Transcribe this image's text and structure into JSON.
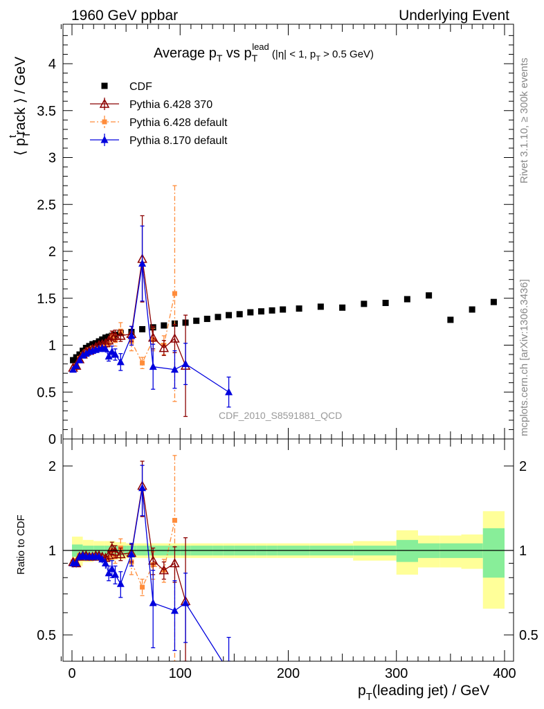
{
  "header": {
    "left": "1960 GeV ppbar",
    "right": "Underlying Event"
  },
  "side_labels": {
    "rivet": "Rivet 3.1.10, ≥ 300k events",
    "mcplots": "mcplots.cern.ch [arXiv:1306.3436]"
  },
  "chart_data": [
    {
      "type": "scatter",
      "title": "Average p_T vs p_T^lead (|η| < 1, p_T > 0.5 GeV)",
      "xlabel": "p_T(leading jet) / GeV",
      "ylabel": "⟨ p_T^track ⟩ / GeV",
      "watermark": "CDF_2010_S8591881_QCD",
      "xlim": [
        -10,
        405
      ],
      "ylim": [
        0,
        4.4
      ],
      "x_ticks": [
        0,
        100,
        200,
        300,
        400
      ],
      "y_ticks": [
        0,
        0.5,
        1,
        1.5,
        2,
        2.5,
        3,
        3.5,
        4
      ],
      "y_tick_labels": [
        "0",
        "0.5",
        "1",
        "1.5",
        "2",
        "2.5",
        "3",
        "3.5",
        "4"
      ],
      "grid": false,
      "legend_position": "top-left",
      "series": [
        {
          "name": "CDF",
          "color": "#000000",
          "marker": "filled-square",
          "x": [
            1,
            4,
            7,
            10,
            13,
            16,
            19,
            22,
            25,
            28,
            31,
            34,
            37,
            40,
            45,
            55,
            65,
            75,
            85,
            95,
            105,
            115,
            125,
            135,
            145,
            155,
            165,
            175,
            185,
            195,
            210,
            230,
            250,
            270,
            290,
            310,
            330,
            350,
            370,
            390
          ],
          "y": [
            0.84,
            0.87,
            0.9,
            0.94,
            0.97,
            0.99,
            1.01,
            1.02,
            1.04,
            1.06,
            1.08,
            1.09,
            1.1,
            1.11,
            1.13,
            1.14,
            1.17,
            1.19,
            1.21,
            1.23,
            1.24,
            1.26,
            1.28,
            1.3,
            1.32,
            1.33,
            1.35,
            1.36,
            1.37,
            1.38,
            1.39,
            1.41,
            1.4,
            1.44,
            1.45,
            1.49,
            1.53,
            1.27,
            1.38,
            1.46
          ],
          "err": [
            0.02,
            0.02,
            0.02,
            0.02,
            0.02,
            0.02,
            0.02,
            0.02,
            0.02,
            0.02,
            0.02,
            0.02,
            0.02,
            0.02,
            0.02,
            0.02,
            0.02,
            0.02,
            0.02,
            0.02,
            0.02,
            0.02,
            0.02,
            0.02,
            0.02,
            0.02,
            0.02,
            0.02,
            0.02,
            0.02,
            0.02,
            0.02,
            0.02,
            0.02,
            0.02,
            0.02,
            0.02,
            0.02,
            0.02,
            0.02
          ]
        },
        {
          "name": "Pythia 6.428 370",
          "color": "#8b0000",
          "marker": "open-triangle",
          "line": "solid",
          "x": [
            1,
            4,
            7,
            10,
            13,
            16,
            19,
            22,
            25,
            28,
            31,
            34,
            37,
            40,
            45,
            55,
            65,
            75,
            85,
            95,
            105
          ],
          "y": [
            0.76,
            0.78,
            0.85,
            0.9,
            0.93,
            0.94,
            0.96,
            0.98,
            1.0,
            1.01,
            1.02,
            1.05,
            1.1,
            1.1,
            1.1,
            1.12,
            1.92,
            1.08,
            0.97,
            1.07,
            0.78
          ],
          "err": [
            0.03,
            0.03,
            0.03,
            0.03,
            0.03,
            0.03,
            0.03,
            0.03,
            0.03,
            0.03,
            0.04,
            0.04,
            0.05,
            0.06,
            0.06,
            0.08,
            0.46,
            0.12,
            0.08,
            0.15,
            0.54
          ]
        },
        {
          "name": "Pythia 6.428 default",
          "color": "#ff8c3a",
          "marker": "filled-square-small",
          "line": "dashdot",
          "x": [
            1,
            4,
            7,
            10,
            13,
            16,
            19,
            22,
            25,
            28,
            31,
            34,
            37,
            40,
            45,
            55,
            65,
            75,
            85,
            95
          ],
          "y": [
            0.74,
            0.78,
            0.86,
            0.9,
            0.93,
            0.95,
            0.97,
            0.97,
            0.97,
            0.99,
            1.0,
            1.02,
            1.1,
            1.05,
            1.15,
            1.04,
            0.81,
            1.06,
            1.0,
            1.55
          ],
          "err": [
            0.03,
            0.03,
            0.03,
            0.03,
            0.03,
            0.03,
            0.03,
            0.03,
            0.03,
            0.03,
            0.04,
            0.04,
            0.05,
            0.06,
            0.09,
            0.1,
            0.06,
            0.12,
            0.1,
            1.15
          ]
        },
        {
          "name": "Pythia 8.170 default",
          "color": "#0000dd",
          "marker": "filled-triangle",
          "line": "solid",
          "x": [
            1,
            4,
            7,
            10,
            13,
            16,
            19,
            22,
            25,
            28,
            31,
            34,
            37,
            40,
            45,
            55,
            65,
            75,
            95,
            105,
            145
          ],
          "y": [
            0.74,
            0.78,
            0.84,
            0.89,
            0.91,
            0.93,
            0.94,
            0.95,
            0.96,
            0.97,
            0.96,
            0.88,
            0.93,
            0.9,
            0.82,
            1.1,
            1.87,
            0.77,
            0.74,
            0.8,
            0.5
          ],
          "err": [
            0.03,
            0.03,
            0.03,
            0.03,
            0.03,
            0.03,
            0.03,
            0.03,
            0.03,
            0.03,
            0.04,
            0.05,
            0.06,
            0.06,
            0.09,
            0.1,
            0.4,
            0.24,
            0.2,
            0.22,
            0.16
          ]
        }
      ]
    },
    {
      "type": "scatter",
      "title": "",
      "xlabel": "p_T(leading jet) / GeV",
      "ylabel": "Ratio to CDF",
      "xlim": [
        -10,
        405
      ],
      "ylim": [
        0.4,
        2.3
      ],
      "y_log": true,
      "x_ticks": [
        0,
        100,
        200,
        300,
        400
      ],
      "y_ticks": [
        0.5,
        1,
        2
      ],
      "y_tick_labels": [
        "0.5",
        "1",
        "2"
      ],
      "reference_line": 1,
      "bands": {
        "x_edges": [
          0,
          10,
          20,
          30,
          40,
          50,
          60,
          70,
          80,
          90,
          100,
          110,
          120,
          130,
          140,
          150,
          160,
          170,
          180,
          190,
          200,
          220,
          240,
          260,
          280,
          300,
          320,
          340,
          360,
          380,
          400
        ],
        "inner_color": "#88ee99",
        "outer_color": "#ffff99",
        "inner": [
          0.05,
          0.04,
          0.04,
          0.04,
          0.04,
          0.04,
          0.04,
          0.04,
          0.04,
          0.04,
          0.04,
          0.04,
          0.04,
          0.04,
          0.04,
          0.04,
          0.04,
          0.04,
          0.04,
          0.04,
          0.04,
          0.04,
          0.04,
          0.04,
          0.04,
          0.09,
          0.06,
          0.06,
          0.06,
          0.2
        ],
        "outer": [
          0.12,
          0.09,
          0.08,
          0.08,
          0.07,
          0.06,
          0.06,
          0.06,
          0.06,
          0.06,
          0.06,
          0.06,
          0.06,
          0.06,
          0.06,
          0.06,
          0.06,
          0.06,
          0.06,
          0.06,
          0.06,
          0.06,
          0.06,
          0.08,
          0.08,
          0.18,
          0.13,
          0.13,
          0.14,
          0.38
        ]
      },
      "series": [
        {
          "name": "Pythia 6.428 370",
          "x": [
            1,
            4,
            7,
            10,
            13,
            16,
            19,
            22,
            25,
            28,
            31,
            34,
            37,
            40,
            45,
            55,
            65,
            75,
            85,
            95,
            105
          ],
          "y": [
            0.91,
            0.9,
            0.95,
            0.96,
            0.96,
            0.95,
            0.95,
            0.96,
            0.96,
            0.95,
            0.94,
            0.96,
            1.02,
            0.99,
            0.97,
            0.98,
            1.7,
            0.92,
            0.85,
            0.9,
            0.66
          ],
          "err": [
            0.03,
            0.03,
            0.03,
            0.03,
            0.03,
            0.03,
            0.03,
            0.03,
            0.03,
            0.03,
            0.04,
            0.04,
            0.05,
            0.05,
            0.05,
            0.07,
            0.38,
            0.1,
            0.06,
            0.13,
            0.45
          ]
        },
        {
          "name": "Pythia 6.428 default",
          "x": [
            1,
            4,
            7,
            10,
            13,
            16,
            19,
            22,
            25,
            28,
            31,
            34,
            37,
            40,
            45,
            55,
            65,
            75,
            85,
            95
          ],
          "y": [
            0.91,
            0.92,
            0.96,
            0.96,
            0.96,
            0.96,
            0.96,
            0.96,
            0.95,
            0.94,
            0.93,
            0.94,
            1.0,
            0.95,
            1.02,
            0.91,
            0.74,
            0.89,
            0.85,
            1.28
          ],
          "err": [
            0.03,
            0.03,
            0.03,
            0.03,
            0.03,
            0.03,
            0.03,
            0.03,
            0.03,
            0.03,
            0.04,
            0.04,
            0.04,
            0.05,
            0.08,
            0.09,
            0.05,
            0.1,
            0.08,
            0.9
          ]
        },
        {
          "name": "Pythia 8.170 default",
          "x": [
            1,
            4,
            7,
            10,
            13,
            16,
            19,
            22,
            25,
            28,
            31,
            34,
            37,
            40,
            45,
            55,
            65,
            75,
            95,
            105,
            145
          ],
          "y": [
            0.9,
            0.9,
            0.95,
            0.96,
            0.95,
            0.95,
            0.95,
            0.95,
            0.95,
            0.93,
            0.9,
            0.83,
            0.86,
            0.82,
            0.76,
            0.97,
            1.67,
            0.65,
            0.61,
            0.65,
            0.37
          ],
          "err": [
            0.03,
            0.03,
            0.03,
            0.03,
            0.03,
            0.03,
            0.03,
            0.03,
            0.03,
            0.03,
            0.04,
            0.05,
            0.06,
            0.06,
            0.08,
            0.09,
            0.34,
            0.2,
            0.17,
            0.18,
            0.12
          ]
        }
      ]
    }
  ]
}
